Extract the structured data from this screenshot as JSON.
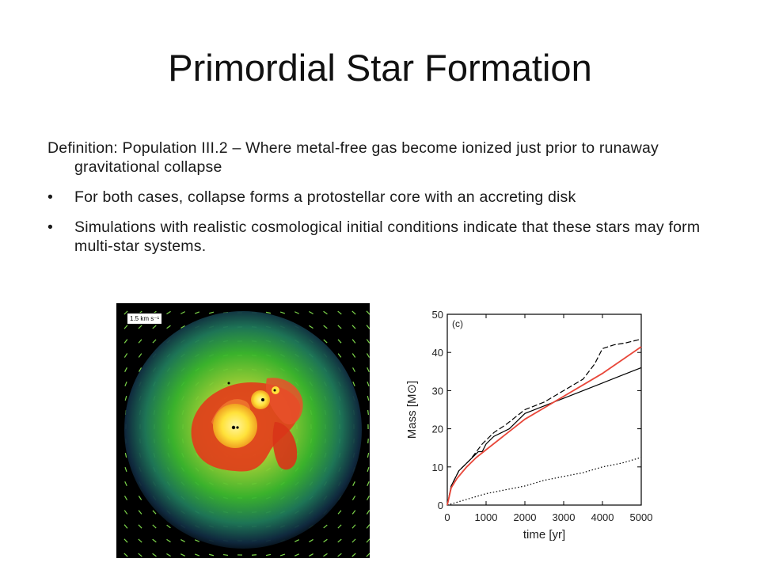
{
  "slide": {
    "title": "Primordial Star Formation"
  },
  "body": {
    "definition": "Definition: Population III.2 – Where metal-free gas become ionized just prior to runaway gravitational collapse",
    "bullets": [
      {
        "marker": "•",
        "text": "For both cases, collapse forms a protostellar core with an accreting disk"
      },
      {
        "marker": "•",
        "text": "Simulations with realistic cosmological initial conditions indicate that these stars may form multi-star systems."
      }
    ]
  },
  "simulation": {
    "scale_label": "1.5 km s⁻¹",
    "colors": {
      "background": "#000000",
      "outer_gas": "#3dbb2e",
      "inner_gas": "#e23b1a",
      "core": "#ffe23a",
      "vectors": "#7dd64a"
    }
  },
  "chart_data": {
    "type": "line",
    "panel_label": "(c)",
    "xlabel": "time [yr]",
    "ylabel": "Mass [M⊙]",
    "xlim": [
      0,
      5000
    ],
    "ylim": [
      0,
      50
    ],
    "x_ticks": [
      0,
      1000,
      2000,
      3000,
      4000,
      5000
    ],
    "y_ticks": [
      0,
      10,
      20,
      30,
      40,
      50
    ],
    "series": [
      {
        "style": "dashed",
        "color": "#000000",
        "x": [
          0,
          100,
          300,
          600,
          900,
          1200,
          1500,
          2000,
          2500,
          3000,
          3500,
          3800,
          4000,
          4300,
          4600,
          5000
        ],
        "values": [
          0,
          5,
          9,
          12,
          16,
          19,
          21,
          25,
          27,
          30,
          33,
          37,
          41,
          42,
          42.5,
          43.5
        ]
      },
      {
        "style": "solid",
        "color": "#000000",
        "x": [
          0,
          100,
          300,
          600,
          800,
          900,
          1000,
          1200,
          1400,
          1600,
          1800,
          2000,
          2500,
          3000,
          3500,
          4000,
          4500,
          5000
        ],
        "values": [
          0,
          5,
          9,
          12,
          14,
          14,
          16,
          18,
          19,
          20,
          22,
          24,
          26,
          28,
          30,
          32,
          34,
          36
        ]
      },
      {
        "style": "dotted",
        "color": "#000000",
        "x": [
          0,
          500,
          1000,
          1500,
          2000,
          2500,
          3000,
          3500,
          4000,
          4500,
          5000
        ],
        "values": [
          0,
          1.5,
          3,
          4,
          5,
          6.5,
          7.5,
          8.5,
          10,
          11,
          12.5
        ]
      },
      {
        "style": "solid",
        "color": "#e8473a",
        "x": [
          0,
          100,
          250,
          500,
          750,
          1000,
          1500,
          2000,
          2500,
          3000,
          3500,
          4000,
          4500,
          5000
        ],
        "values": [
          0,
          4.5,
          7,
          10,
          12.5,
          14.5,
          18.5,
          22.5,
          25.5,
          28.5,
          31.5,
          34.5,
          38,
          41.5
        ]
      }
    ]
  }
}
